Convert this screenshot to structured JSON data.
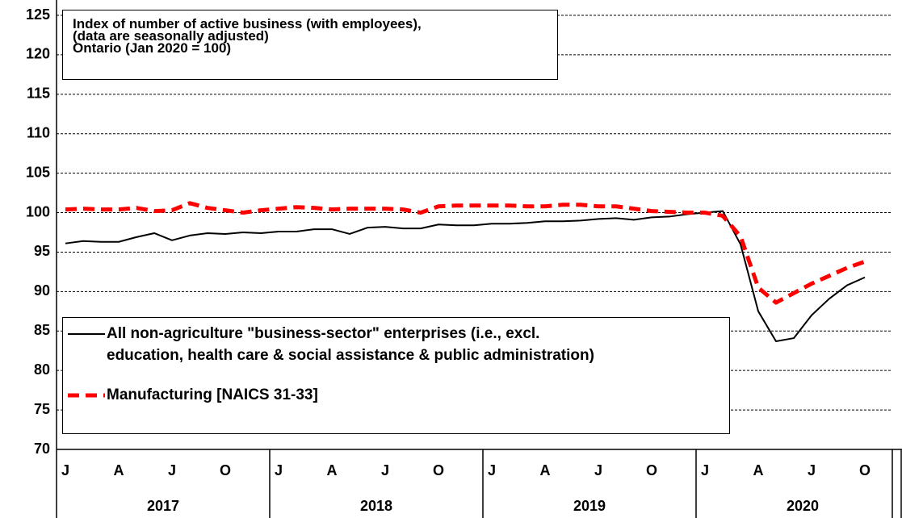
{
  "chart_data": {
    "type": "line",
    "title": "Index of number of active business (with employees),\n(data are seasonally adjusted)\n Ontario (Jan 2020 = 100)",
    "categories": [
      "J",
      null,
      null,
      "A",
      null,
      null,
      "J",
      null,
      null,
      "O",
      null,
      null,
      "J",
      null,
      null,
      "A",
      null,
      null,
      "J",
      null,
      null,
      "O",
      null,
      null,
      "J",
      null,
      null,
      "A",
      null,
      null,
      "J",
      null,
      null,
      "O",
      null,
      null,
      "J",
      null,
      null,
      "A",
      null,
      null,
      "J",
      null,
      null,
      "O",
      null,
      null
    ],
    "year_labels": [
      "2017",
      "2018",
      "2019",
      "2020"
    ],
    "series": [
      {
        "name": "All non-agriculture \"business-sector\" enterprises (i.e., excl.\neducation, health care & social assistance & public administration)",
        "color": "#000000",
        "values": [
          96.1,
          96.4,
          96.3,
          96.3,
          96.9,
          97.4,
          96.5,
          97.1,
          97.4,
          97.3,
          97.5,
          97.4,
          97.6,
          97.6,
          97.9,
          97.9,
          97.3,
          98.1,
          98.2,
          98.0,
          98.0,
          98.5,
          98.4,
          98.4,
          98.6,
          98.6,
          98.7,
          98.9,
          98.9,
          99.0,
          99.2,
          99.3,
          99.1,
          99.4,
          99.5,
          99.8,
          100.0,
          100.2,
          96.0,
          87.5,
          83.7,
          84.1,
          87.0,
          89.1,
          90.8,
          91.8,
          null,
          null
        ]
      },
      {
        "name": "Manufacturing [NAICS 31-33]",
        "color": "#ff0000",
        "values": [
          100.4,
          100.5,
          100.4,
          100.4,
          100.6,
          100.2,
          100.3,
          101.2,
          100.6,
          100.3,
          100.0,
          100.3,
          100.5,
          100.7,
          100.6,
          100.4,
          100.5,
          100.5,
          100.5,
          100.4,
          100.0,
          100.8,
          100.9,
          100.9,
          100.9,
          100.9,
          100.8,
          100.8,
          101.0,
          101.0,
          100.8,
          100.8,
          100.5,
          100.2,
          100.1,
          100.0,
          100.0,
          99.6,
          97.0,
          90.5,
          88.6,
          89.8,
          91.0,
          92.0,
          93.0,
          93.8,
          null,
          null
        ]
      }
    ],
    "ylim": [
      70,
      125
    ],
    "yticks": [
      70,
      75,
      80,
      85,
      90,
      95,
      100,
      105,
      110,
      115,
      120,
      125
    ],
    "grid": true,
    "legend": "lower left"
  }
}
